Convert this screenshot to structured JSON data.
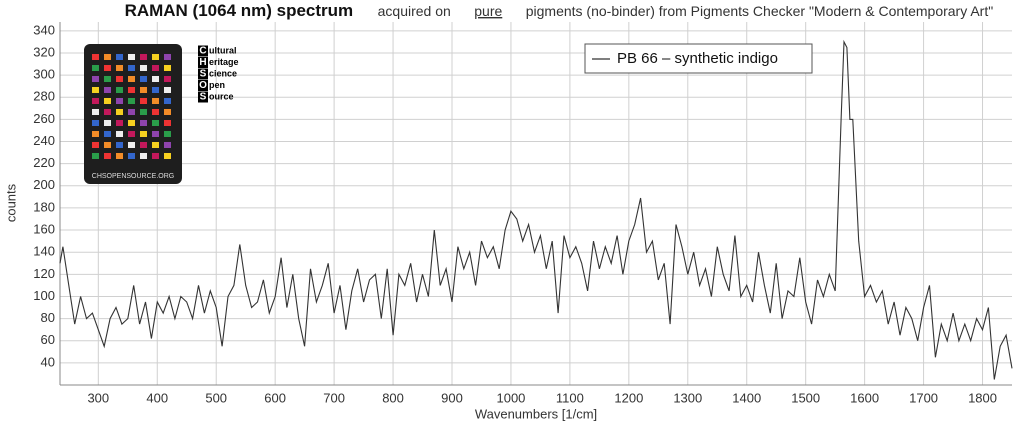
{
  "chart_data": {
    "type": "line",
    "title": {
      "bold": "RAMAN (1064 nm) spectrum",
      "prefix": "acquired on",
      "underlined": "pure",
      "suffix": "pigments (no-binder) from Pigments Checker \"Modern & Contemporary Art\""
    },
    "x_label": "Wavenumbers [1/cm]",
    "y_label": "counts",
    "x": [
      235,
      240,
      250,
      260,
      270,
      280,
      290,
      300,
      310,
      320,
      330,
      340,
      350,
      360,
      370,
      380,
      390,
      400,
      410,
      420,
      430,
      440,
      450,
      460,
      470,
      480,
      490,
      500,
      510,
      520,
      530,
      540,
      550,
      560,
      570,
      580,
      590,
      600,
      610,
      620,
      630,
      640,
      650,
      660,
      670,
      680,
      690,
      700,
      710,
      720,
      730,
      740,
      750,
      760,
      770,
      780,
      790,
      800,
      810,
      820,
      830,
      840,
      850,
      860,
      870,
      880,
      890,
      900,
      910,
      920,
      930,
      940,
      950,
      960,
      970,
      980,
      990,
      1000,
      1010,
      1020,
      1030,
      1040,
      1050,
      1060,
      1070,
      1080,
      1090,
      1100,
      1110,
      1120,
      1130,
      1140,
      1150,
      1160,
      1170,
      1180,
      1190,
      1200,
      1210,
      1220,
      1230,
      1240,
      1250,
      1260,
      1270,
      1280,
      1290,
      1300,
      1310,
      1320,
      1330,
      1340,
      1350,
      1360,
      1370,
      1380,
      1390,
      1400,
      1410,
      1420,
      1430,
      1440,
      1450,
      1460,
      1470,
      1480,
      1490,
      1500,
      1510,
      1520,
      1530,
      1540,
      1550,
      1560,
      1565,
      1570,
      1575,
      1580,
      1590,
      1600,
      1610,
      1620,
      1630,
      1640,
      1650,
      1660,
      1670,
      1680,
      1690,
      1700,
      1710,
      1720,
      1730,
      1740,
      1750,
      1760,
      1770,
      1780,
      1790,
      1800,
      1810,
      1820,
      1830,
      1840,
      1850
    ],
    "series": [
      {
        "name": "PB 66 – synthetic indigo",
        "color": "#333333",
        "values": [
          130,
          145,
          110,
          75,
          100,
          80,
          85,
          70,
          55,
          80,
          90,
          75,
          80,
          110,
          75,
          95,
          62,
          95,
          85,
          100,
          80,
          100,
          95,
          80,
          110,
          85,
          105,
          90,
          55,
          100,
          110,
          147,
          110,
          90,
          95,
          115,
          85,
          100,
          135,
          90,
          120,
          80,
          55,
          125,
          95,
          110,
          130,
          85,
          110,
          70,
          105,
          125,
          95,
          115,
          120,
          80,
          125,
          65,
          120,
          110,
          130,
          95,
          120,
          100,
          160,
          110,
          125,
          95,
          145,
          125,
          140,
          110,
          150,
          135,
          145,
          125,
          160,
          177,
          170,
          150,
          165,
          140,
          155,
          125,
          150,
          85,
          155,
          135,
          145,
          130,
          105,
          150,
          125,
          145,
          130,
          155,
          120,
          150,
          165,
          189,
          140,
          150,
          115,
          130,
          75,
          165,
          145,
          120,
          140,
          110,
          125,
          100,
          145,
          120,
          105,
          155,
          100,
          110,
          95,
          140,
          110,
          85,
          130,
          80,
          105,
          100,
          135,
          95,
          75,
          115,
          100,
          120,
          105,
          260,
          330,
          325,
          260,
          260,
          150,
          100,
          110,
          95,
          105,
          75,
          95,
          65,
          90,
          80,
          60,
          90,
          110,
          45,
          75,
          60,
          85,
          60,
          75,
          60,
          80,
          70,
          90,
          25,
          55,
          65,
          35
        ]
      }
    ],
    "xlim": [
      235,
      1850
    ],
    "ylim": [
      20,
      348
    ],
    "xticks": [
      300,
      400,
      500,
      600,
      700,
      800,
      900,
      1000,
      1100,
      1200,
      1300,
      1400,
      1500,
      1600,
      1700,
      1800
    ],
    "yticks": [
      40,
      60,
      80,
      100,
      120,
      140,
      160,
      180,
      200,
      220,
      240,
      260,
      280,
      300,
      320,
      340
    ],
    "grid": true,
    "logo": {
      "letters": [
        "C",
        "H",
        "S",
        "O",
        "S"
      ],
      "words": [
        "ultural",
        "eritage",
        "cience",
        "pen",
        "ource"
      ],
      "caption": "CHSOPENSOURCE.ORG"
    }
  }
}
